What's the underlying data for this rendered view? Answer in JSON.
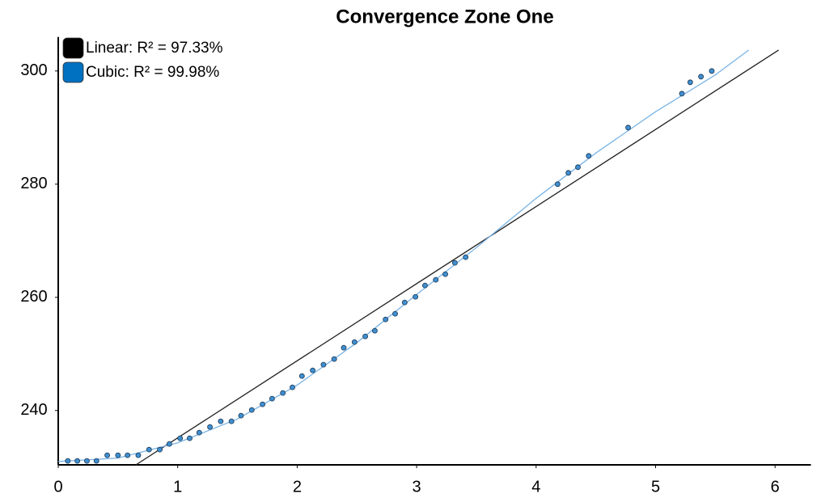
{
  "chart_data": {
    "type": "scatter",
    "title": "Convergence Zone One",
    "xlim": [
      0,
      6.3
    ],
    "ylim": [
      230.4,
      306
    ],
    "xticks": [
      0,
      1,
      2,
      3,
      4,
      5,
      6
    ],
    "yticks": [
      240,
      260,
      280,
      300
    ],
    "legend": "top-left",
    "points": {
      "color": "#3f8fd0",
      "x": [
        0.08,
        0.16,
        0.24,
        0.32,
        0.41,
        0.5,
        0.58,
        0.67,
        0.76,
        0.85,
        0.93,
        1.02,
        1.1,
        1.18,
        1.27,
        1.36,
        1.45,
        1.53,
        1.62,
        1.71,
        1.79,
        1.88,
        1.96,
        2.04,
        2.13,
        2.22,
        2.31,
        2.39,
        2.48,
        2.57,
        2.65,
        2.74,
        2.82,
        2.9,
        2.99,
        3.07,
        3.16,
        3.24,
        3.32,
        3.41,
        4.18,
        4.27,
        4.35,
        4.44,
        4.77,
        5.22,
        5.29,
        5.38,
        5.47
      ],
      "values": [
        231.1,
        231.1,
        231.1,
        231.1,
        232.1,
        232.1,
        232.1,
        232.1,
        233.1,
        233.1,
        234.1,
        235.1,
        235.1,
        236.1,
        237.1,
        238.1,
        238.1,
        239.1,
        240.1,
        241.1,
        242.1,
        243.1,
        244.1,
        246.1,
        247.1,
        248.1,
        249.1,
        251.1,
        252.1,
        253.1,
        254.1,
        256.1,
        257.1,
        259.1,
        260.1,
        262.1,
        263.1,
        264.1,
        266.1,
        267.1,
        280,
        282,
        283,
        285,
        290,
        296,
        298,
        299,
        300
      ]
    },
    "series": [
      {
        "name": "Linear: R² = 97.33%",
        "color": "#000000",
        "line_color": "#222222",
        "x": [
          0.65,
          6.03
        ],
        "values": [
          230.4,
          303.7
        ]
      },
      {
        "name": "Cubic: R² = 99.98%",
        "color": "#0070c0",
        "line_color": "#7ab4e6",
        "x": [
          0,
          0.5,
          1,
          1.5,
          2,
          2.5,
          3,
          3.5,
          4,
          4.5,
          5,
          5.5,
          5.78
        ],
        "values": [
          231,
          231.6,
          234.3,
          238.5,
          244.5,
          252,
          260.5,
          268.8,
          277.5,
          285.5,
          292.8,
          299.3,
          303.7
        ]
      }
    ]
  }
}
